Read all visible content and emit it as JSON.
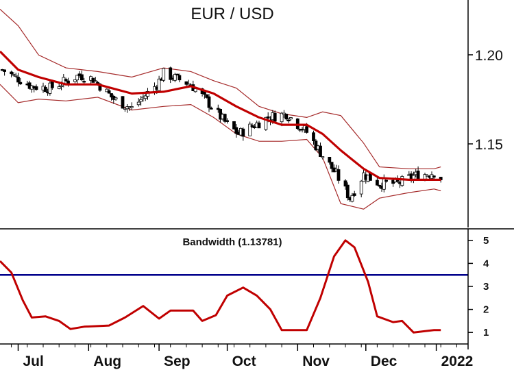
{
  "chart_data": [
    {
      "type": "candlestick",
      "title": "EUR / USD",
      "ylim": [
        1.104,
        1.228
      ],
      "yticks": [
        "1.15",
        "1.20"
      ],
      "ytick_values": [
        1.15,
        1.2
      ],
      "x_range": [
        "2021-06-23",
        "2022-01-15"
      ],
      "x_months": [
        "Jul",
        "Aug",
        "Sep",
        "Oct",
        "Nov",
        "Dec",
        "2022"
      ],
      "x_month_starts": [
        "2021-07-01",
        "2021-08-01",
        "2021-09-01",
        "2021-10-01",
        "2021-11-01",
        "2021-12-01",
        "2022-01-01"
      ],
      "colors": {
        "up": "#ffffff",
        "down": "#000000",
        "ma": "#c00000",
        "bands": "#a52a2a"
      },
      "moving_average": [
        [
          "2021-06-23",
          1.2
        ],
        [
          "2021-07-01",
          1.19
        ],
        [
          "2021-07-10",
          1.186
        ],
        [
          "2021-07-22",
          1.182
        ],
        [
          "2021-08-05",
          1.182
        ],
        [
          "2021-08-20",
          1.177
        ],
        [
          "2021-09-03",
          1.178
        ],
        [
          "2021-09-15",
          1.181
        ],
        [
          "2021-09-25",
          1.177
        ],
        [
          "2021-10-05",
          1.17
        ],
        [
          "2021-10-15",
          1.164
        ],
        [
          "2021-10-25",
          1.16
        ],
        [
          "2021-11-05",
          1.16
        ],
        [
          "2021-11-12",
          1.155
        ],
        [
          "2021-11-20",
          1.146
        ],
        [
          "2021-11-30",
          1.136
        ],
        [
          "2021-12-07",
          1.131
        ],
        [
          "2021-12-20",
          1.13
        ],
        [
          "2021-12-31",
          1.13
        ],
        [
          "2022-01-03",
          1.13
        ]
      ],
      "upper_band": [
        [
          "2021-06-23",
          1.223
        ],
        [
          "2021-07-01",
          1.214
        ],
        [
          "2021-07-10",
          1.198
        ],
        [
          "2021-07-22",
          1.191
        ],
        [
          "2021-08-05",
          1.189
        ],
        [
          "2021-08-20",
          1.186
        ],
        [
          "2021-09-03",
          1.191
        ],
        [
          "2021-09-15",
          1.189
        ],
        [
          "2021-09-25",
          1.184
        ],
        [
          "2021-10-05",
          1.18
        ],
        [
          "2021-10-15",
          1.17
        ],
        [
          "2021-10-25",
          1.166
        ],
        [
          "2021-11-05",
          1.164
        ],
        [
          "2021-11-12",
          1.167
        ],
        [
          "2021-11-20",
          1.165
        ],
        [
          "2021-11-30",
          1.15
        ],
        [
          "2021-12-07",
          1.137
        ],
        [
          "2021-12-20",
          1.136
        ],
        [
          "2021-12-31",
          1.136
        ],
        [
          "2022-01-03",
          1.137
        ]
      ],
      "lower_band": [
        [
          "2021-06-23",
          1.182
        ],
        [
          "2021-07-01",
          1.172
        ],
        [
          "2021-07-10",
          1.174
        ],
        [
          "2021-07-22",
          1.173
        ],
        [
          "2021-08-05",
          1.175
        ],
        [
          "2021-08-20",
          1.168
        ],
        [
          "2021-09-03",
          1.17
        ],
        [
          "2021-09-15",
          1.171
        ],
        [
          "2021-09-25",
          1.164
        ],
        [
          "2021-10-05",
          1.155
        ],
        [
          "2021-10-15",
          1.151
        ],
        [
          "2021-10-25",
          1.151
        ],
        [
          "2021-11-05",
          1.152
        ],
        [
          "2021-11-12",
          1.142
        ],
        [
          "2021-11-20",
          1.117
        ],
        [
          "2021-11-30",
          1.114
        ],
        [
          "2021-12-07",
          1.12
        ],
        [
          "2021-12-20",
          1.123
        ],
        [
          "2021-12-31",
          1.125
        ],
        [
          "2022-01-03",
          1.124
        ]
      ],
      "ohlc_anchor_closes": [
        [
          "2021-06-24",
          1.19
        ],
        [
          "2021-07-07",
          1.181
        ],
        [
          "2021-07-15",
          1.18
        ],
        [
          "2021-07-28",
          1.187
        ],
        [
          "2021-08-03",
          1.185
        ],
        [
          "2021-08-12",
          1.174
        ],
        [
          "2021-08-20",
          1.169
        ],
        [
          "2021-08-31",
          1.182
        ],
        [
          "2021-09-03",
          1.188
        ],
        [
          "2021-09-15",
          1.182
        ],
        [
          "2021-09-22",
          1.173
        ],
        [
          "2021-10-01",
          1.16
        ],
        [
          "2021-10-06",
          1.155
        ],
        [
          "2021-10-19",
          1.164
        ],
        [
          "2021-10-27",
          1.166
        ],
        [
          "2021-11-05",
          1.156
        ],
        [
          "2021-11-11",
          1.145
        ],
        [
          "2021-11-18",
          1.133
        ],
        [
          "2021-11-24",
          1.12
        ],
        [
          "2021-11-30",
          1.133
        ],
        [
          "2021-12-07",
          1.128
        ],
        [
          "2021-12-15",
          1.128
        ],
        [
          "2021-12-22",
          1.132
        ],
        [
          "2021-12-31",
          1.134
        ],
        [
          "2022-01-03",
          1.131
        ]
      ]
    },
    {
      "type": "line",
      "title": "Bandwidth (1.13781)",
      "ylim": [
        0.5,
        5.5
      ],
      "yticks": [
        "1",
        "2",
        "3",
        "4",
        "5"
      ],
      "ytick_values": [
        1,
        2,
        3,
        4,
        5
      ],
      "reference_line": 3.5,
      "colors": {
        "line": "#c00000",
        "reference": "#00008b"
      },
      "series": [
        {
          "values": [
            [
              "2021-06-23",
              4.1
            ],
            [
              "2021-06-28",
              3.6
            ],
            [
              "2021-07-03",
              2.4
            ],
            [
              "2021-07-07",
              1.65
            ],
            [
              "2021-07-13",
              1.7
            ],
            [
              "2021-07-19",
              1.5
            ],
            [
              "2021-07-24",
              1.15
            ],
            [
              "2021-07-30",
              1.25
            ],
            [
              "2021-08-10",
              1.3
            ],
            [
              "2021-08-17",
              1.65
            ],
            [
              "2021-08-25",
              2.15
            ],
            [
              "2021-09-01",
              1.6
            ],
            [
              "2021-09-06",
              1.95
            ],
            [
              "2021-09-16",
              1.95
            ],
            [
              "2021-09-20",
              1.5
            ],
            [
              "2021-09-26",
              1.75
            ],
            [
              "2021-10-01",
              2.6
            ],
            [
              "2021-10-08",
              2.95
            ],
            [
              "2021-10-14",
              2.6
            ],
            [
              "2021-10-20",
              2.0
            ],
            [
              "2021-10-25",
              1.1
            ],
            [
              "2021-11-05",
              1.1
            ],
            [
              "2021-11-11",
              2.5
            ],
            [
              "2021-11-17",
              4.3
            ],
            [
              "2021-11-22",
              5.0
            ],
            [
              "2021-11-26",
              4.7
            ],
            [
              "2021-12-02",
              3.2
            ],
            [
              "2021-12-06",
              1.7
            ],
            [
              "2021-12-13",
              1.45
            ],
            [
              "2021-12-17",
              1.5
            ],
            [
              "2021-12-22",
              1.0
            ],
            [
              "2021-12-31",
              1.1
            ],
            [
              "2022-01-03",
              1.1
            ]
          ]
        }
      ]
    }
  ]
}
